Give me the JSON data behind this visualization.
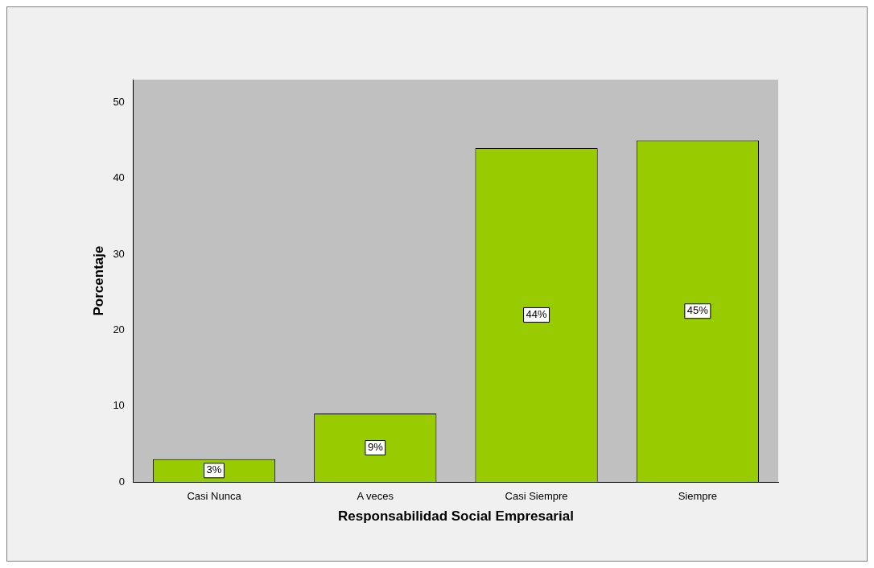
{
  "chart_data": {
    "type": "bar",
    "xlabel": "Responsabilidad Social Empresarial",
    "ylabel": "Porcentaje",
    "categories": [
      "Casi Nunca",
      "A veces",
      "Casi Siempre",
      "Siempre"
    ],
    "values": [
      3,
      9,
      44,
      45
    ],
    "color": "#99cc00",
    "value_labels": [
      "3%",
      "9%",
      "44%",
      "45%"
    ],
    "ylim": [
      0,
      53
    ],
    "yticks": [
      0,
      10,
      20,
      30,
      40,
      50
    ],
    "grid": false,
    "legend": false
  }
}
